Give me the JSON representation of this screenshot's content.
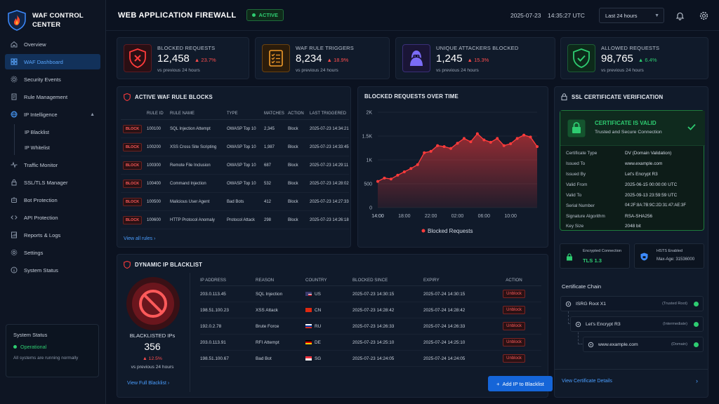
{
  "app": {
    "title": "WAF CONTROL CENTER"
  },
  "sidebar": {
    "items": [
      {
        "label": "Overview"
      },
      {
        "label": "WAF Dashboard",
        "active": true
      },
      {
        "label": "Security Events"
      },
      {
        "label": "Rule Management"
      },
      {
        "label": "IP Intelligence"
      },
      {
        "label": "IP Blacklist"
      },
      {
        "label": "IP Whitelist"
      },
      {
        "label": "Traffic Monitor"
      },
      {
        "label": "SSL/TLS Manager"
      },
      {
        "label": "Bot Protection"
      },
      {
        "label": "API Protection"
      },
      {
        "label": "Reports & Logs"
      },
      {
        "label": "Settings"
      },
      {
        "label": "System Status"
      }
    ],
    "status": {
      "title": "System Status",
      "state": "Operational",
      "note": "All systems are running normally"
    }
  },
  "header": {
    "title": "WEB APPLICATION FIREWALL",
    "status": "ACTIVE",
    "date": "2025-07-23",
    "time": "14:35:27 UTC",
    "range": "Last 24 hours"
  },
  "stats": [
    {
      "label": "BLOCKED REQUESTS",
      "value": "12,458",
      "change": "23.7%",
      "direction": "up",
      "color": "#ff4d4d",
      "sub": "vs previous 24 hours"
    },
    {
      "label": "WAF RULE TRIGGERS",
      "value": "8,234",
      "change": "18.9%",
      "direction": "up",
      "color": "#ff4d4d",
      "sub": "vs previous 24 hours"
    },
    {
      "label": "UNIQUE ATTACKERS BLOCKED",
      "value": "1,245",
      "change": "15.3%",
      "direction": "up",
      "color": "#ff4d4d",
      "sub": "vs previous 24 hours"
    },
    {
      "label": "ALLOWED REQUESTS",
      "value": "98,765",
      "change": "6.4%",
      "direction": "up",
      "color": "#2ecc71",
      "sub": "vs previous 24 hours"
    }
  ],
  "rules": {
    "title": "ACTIVE WAF RULE BLOCKS",
    "columns": [
      "",
      "RULE ID",
      "RULE NAME",
      "TYPE",
      "MATCHES",
      "ACTION",
      "LAST TRIGGERED"
    ],
    "badge": "BLOCK",
    "rows": [
      {
        "id": "100100",
        "name": "SQL Injection Attempt",
        "type": "OWASP Top 10",
        "matches": "2,345",
        "action": "Block",
        "last": "2025-07-23 14:34:21"
      },
      {
        "id": "100200",
        "name": "XSS Cross Site Scripting",
        "type": "OWASP Top 10",
        "matches": "1,987",
        "action": "Block",
        "last": "2025-07-23 14:33:45"
      },
      {
        "id": "100300",
        "name": "Remote File Inclusion",
        "type": "OWASP Top 10",
        "matches": "687",
        "action": "Block",
        "last": "2025-07-23 14:29:11"
      },
      {
        "id": "100400",
        "name": "Command Injection",
        "type": "OWASP Top 10",
        "matches": "532",
        "action": "Block",
        "last": "2025-07-23 14:28:02"
      },
      {
        "id": "100500",
        "name": "Malicious User Agent",
        "type": "Bad Bots",
        "matches": "412",
        "action": "Block",
        "last": "2025-07-23 14:27:33"
      },
      {
        "id": "100600",
        "name": "HTTP Protocol Anomaly",
        "type": "Protocol Attack",
        "matches": "298",
        "action": "Block",
        "last": "2025-07-23 14:26:18"
      }
    ],
    "view_all": "View all rules"
  },
  "chart_title": "BLOCKED REQUESTS OVER TIME",
  "chart_data": {
    "type": "area",
    "title": "",
    "x": [
      "14:00",
      "15:00",
      "16:00",
      "17:00",
      "18:00",
      "19:00",
      "20:00",
      "21:00",
      "22:00",
      "23:00",
      "00:00",
      "01:00",
      "02:00",
      "03:00",
      "04:00",
      "05:00",
      "06:00",
      "07:00",
      "08:00",
      "09:00",
      "10:00",
      "11:00",
      "12:00",
      "13:00",
      "14:00"
    ],
    "xticks": [
      "14:00",
      "18:00",
      "22:00",
      "02:00",
      "06:00",
      "10:00",
      "14:00"
    ],
    "yticks": [
      "0",
      "500",
      "1K",
      "1.5K",
      "2K"
    ],
    "series": [
      {
        "name": "Blocked Requests",
        "values": [
          550,
          620,
          600,
          680,
          750,
          820,
          900,
          1150,
          1180,
          1300,
          1280,
          1240,
          1350,
          1450,
          1380,
          1550,
          1420,
          1370,
          1450,
          1300,
          1340,
          1450,
          1520,
          1480,
          1280
        ]
      }
    ],
    "ylim": [
      0,
      2000
    ],
    "color": "#ff3b3b",
    "legend": "bottom"
  },
  "blacklist": {
    "title": "DYNAMIC IP BLACKLIST",
    "label": "BLACKLISTED IPs",
    "count": "356",
    "change": "12.5%",
    "sub": "vs previous 24 hours",
    "view_full": "View Full Blacklist",
    "columns": [
      "IP ADDRESS",
      "REASON",
      "COUNTRY",
      "BLOCKED SINCE",
      "EXPIRY",
      "ACTION"
    ],
    "rows": [
      {
        "ip": "203.0.113.45",
        "reason": "SQL Injection",
        "country": "US",
        "since": "2025-07-23 14:30:15",
        "expiry": "2025-07-24 14:30:15"
      },
      {
        "ip": "198.51.100.23",
        "reason": "XSS Attack",
        "country": "CN",
        "since": "2025-07-23 14:28:42",
        "expiry": "2025-07-24 14:28:42"
      },
      {
        "ip": "192.0.2.78",
        "reason": "Brute Force",
        "country": "RU",
        "since": "2025-07-23 14:26:33",
        "expiry": "2025-07-24 14:26:33"
      },
      {
        "ip": "203.0.113.91",
        "reason": "RFI Attempt",
        "country": "DE",
        "since": "2025-07-23 14:25:10",
        "expiry": "2025-07-24 14:25:10"
      },
      {
        "ip": "198.51.100.67",
        "reason": "Bad Bot",
        "country": "SG",
        "since": "2025-07-23 14:24:05",
        "expiry": "2025-07-24 14:24:05"
      }
    ],
    "action_label": "Unblock",
    "add_button": "Add IP to Blacklist"
  },
  "ssl": {
    "title": "SSL CERTIFICATE VERIFICATION",
    "status": "CERTIFICATE IS VALID",
    "status_sub": "Trusted and Secure Connection",
    "details": [
      {
        "k": "Certificate Type",
        "v": "DV (Domain Validation)"
      },
      {
        "k": "Issued To",
        "v": "www.example.com"
      },
      {
        "k": "Issued By",
        "v": "Let's Encrypt R3"
      },
      {
        "k": "Valid From",
        "v": "2025-06-15 00:00:00 UTC"
      },
      {
        "k": "Valid To",
        "v": "2025-09-13 23:59:59 UTC"
      },
      {
        "k": "Serial Number",
        "v": "04:2F:8A:7B:9C:2D:31:47:AE:3F"
      },
      {
        "k": "Signature Algorithm",
        "v": "RSA-SHA256"
      },
      {
        "k": "Key Size",
        "v": "2048 bit"
      }
    ],
    "encryption_label": "Encrypted Connection",
    "encryption_value": "TLS 1.3",
    "hsts_label": "HSTS Enabled",
    "hsts_value": "Max-Age: 31536000",
    "chain_title": "Certificate Chain",
    "chain": [
      {
        "name": "ISRG Root X1",
        "tag": "(Trusted Root)"
      },
      {
        "name": "Let's Encrypt R3",
        "tag": "(Intermediate)"
      },
      {
        "name": "www.example.com",
        "tag": "(Domain)"
      }
    ],
    "view_details": "View Certificate Details"
  }
}
